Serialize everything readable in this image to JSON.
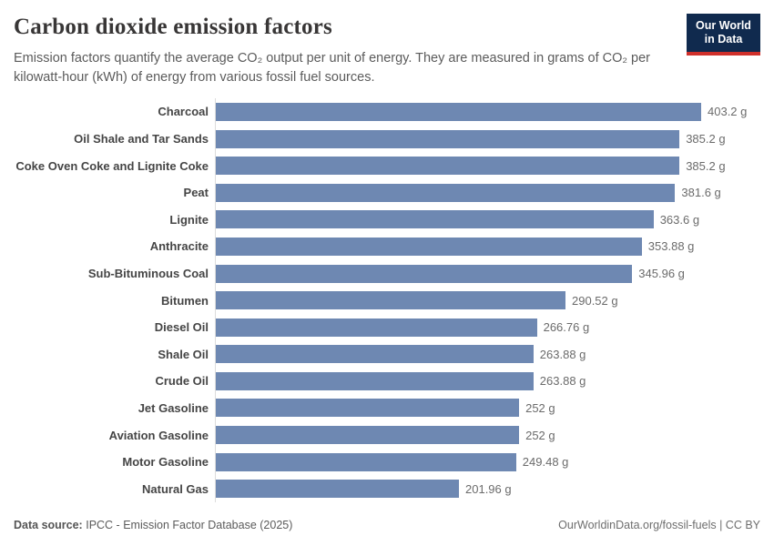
{
  "header": {
    "title": "Carbon dioxide emission factors",
    "subtitle": "Emission factors quantify the average CO₂ output per unit of energy. They are measured in grams of CO₂ per kilowatt-hour (kWh) of energy from various fossil fuel sources.",
    "logo": {
      "line1": "Our World",
      "line2": "in Data"
    }
  },
  "chart_data": {
    "type": "bar",
    "orientation": "horizontal",
    "title": "Carbon dioxide emission factors",
    "xlabel": "",
    "ylabel": "",
    "unit": "grams of CO₂ per kilowatt-hour (kWh)",
    "xlim": [
      0,
      403.2
    ],
    "grid": false,
    "legend": "none",
    "bar_color": "#6e88b2",
    "axis_line_color": "#dcdcdc",
    "categories": [
      "Charcoal",
      "Oil Shale and Tar Sands",
      "Coke Oven Coke and Lignite Coke",
      "Peat",
      "Lignite",
      "Anthracite",
      "Sub-Bituminous Coal",
      "Bitumen",
      "Diesel Oil",
      "Shale Oil",
      "Crude Oil",
      "Jet Gasoline",
      "Aviation Gasoline",
      "Motor Gasoline",
      "Natural Gas"
    ],
    "values": [
      403.2,
      385.2,
      385.2,
      381.6,
      363.6,
      353.88,
      345.96,
      290.52,
      266.76,
      263.88,
      263.88,
      252,
      252,
      249.48,
      201.96
    ],
    "value_labels": [
      "403.2 g",
      "385.2 g",
      "385.2 g",
      "381.6 g",
      "363.6 g",
      "353.88 g",
      "345.96 g",
      "290.52 g",
      "266.76 g",
      "263.88 g",
      "263.88 g",
      "252 g",
      "252 g",
      "249.48 g",
      "201.96 g"
    ]
  },
  "footer": {
    "source_label": "Data source:",
    "source_text": "IPCC - Emission Factor Database (2025)",
    "credit": "OurWorldinData.org/fossil-fuels | CC BY"
  }
}
